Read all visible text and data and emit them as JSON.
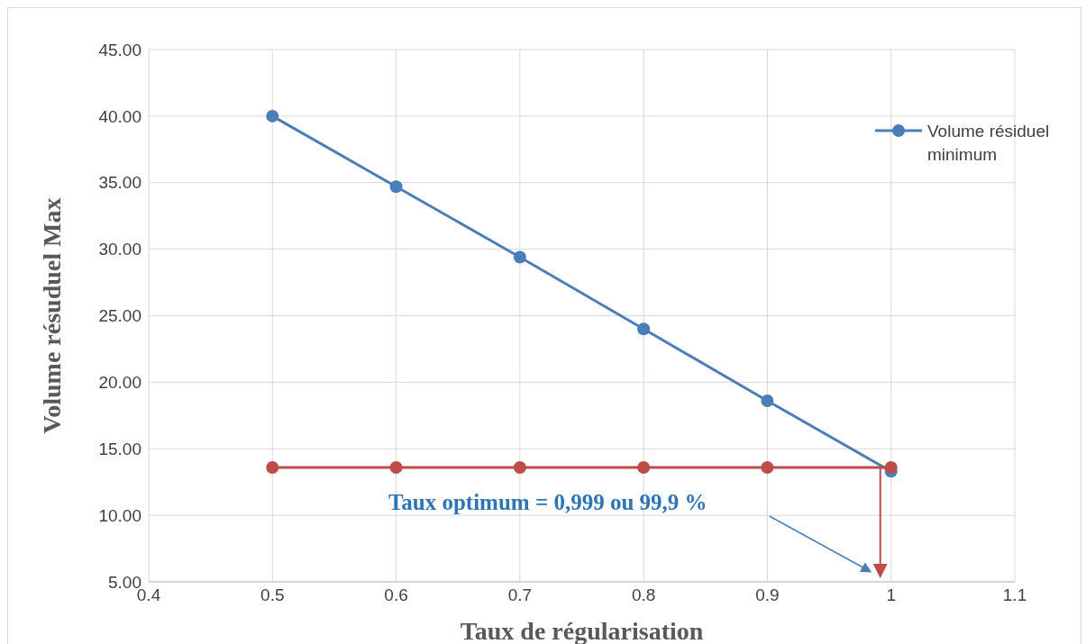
{
  "chart_data": {
    "type": "line",
    "xlabel": "Taux de régularisation",
    "ylabel": "Volume résuduel Max",
    "x": [
      0.5,
      0.6,
      0.7,
      0.8,
      0.9,
      1
    ],
    "series": [
      {
        "name": "Volume résiduel minimum",
        "color": "#4a7ebb",
        "values": [
          40.0,
          34.7,
          29.4,
          24.0,
          18.6,
          13.3
        ]
      },
      {
        "color": "#be4b48",
        "values": [
          13.6,
          13.6,
          13.6,
          13.6,
          13.6,
          13.6
        ]
      }
    ],
    "xlim": [
      0.4,
      1.1
    ],
    "xticks": [
      0.4,
      0.5,
      0.6,
      0.7,
      0.8,
      0.9,
      1,
      1.1
    ],
    "ylim": [
      5,
      45
    ],
    "yticks": [
      {
        "value": 5,
        "label": "5.00"
      },
      {
        "value": 10,
        "label": "10.00"
      },
      {
        "value": 15,
        "label": "15.00"
      },
      {
        "value": 20,
        "label": "20.00"
      },
      {
        "value": 25,
        "label": "25.00"
      },
      {
        "value": 30,
        "label": "30.00"
      },
      {
        "value": 35,
        "label": "35.00"
      },
      {
        "value": 40,
        "label": "40.00"
      },
      {
        "value": 45,
        "label": "45.00"
      }
    ],
    "grid": true,
    "legend": "top right",
    "marker": "circle",
    "line_style": "solid",
    "annotations": [
      "Taux optimum = 0,999 ou 99,9 %"
    ]
  }
}
